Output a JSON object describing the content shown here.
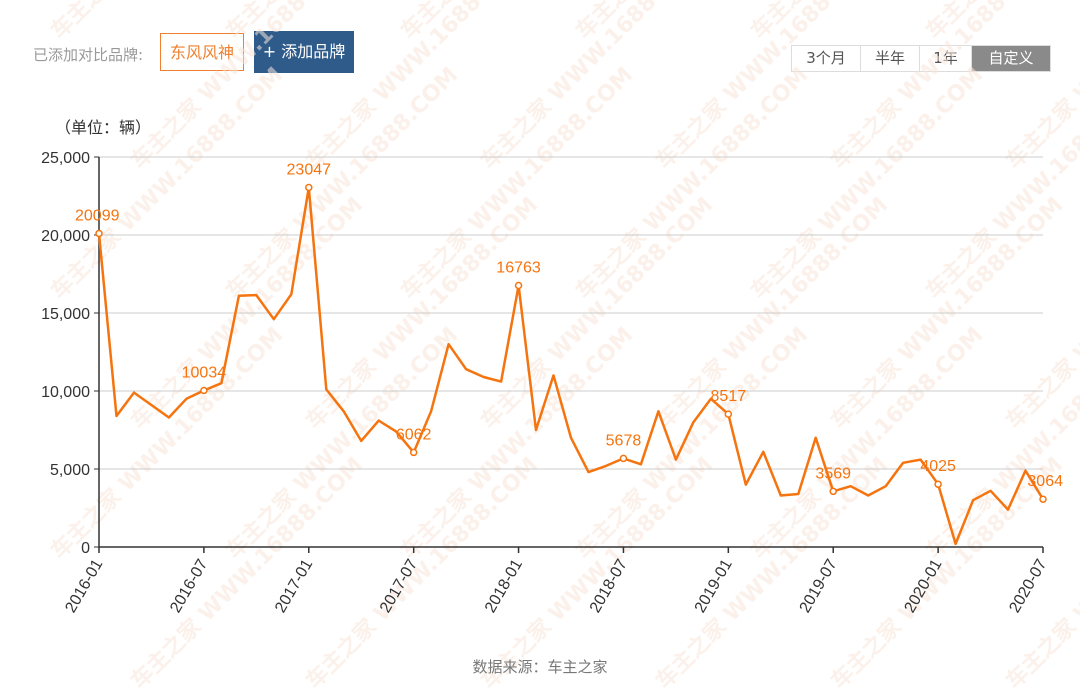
{
  "toolbar": {
    "added_label": "已添加对比品牌:",
    "brand_tag": "东风风神",
    "add_button": "+ 添加品牌",
    "ranges": [
      "3个月",
      "半年",
      "1年",
      "自定义"
    ],
    "active_range": "自定义"
  },
  "source_text": "数据来源：车主之家",
  "chart_data": {
    "type": "line",
    "unit_label": "（单位：辆）",
    "ylim": [
      0,
      25000
    ],
    "y_ticks": [
      0,
      5000,
      10000,
      15000,
      20000,
      25000
    ],
    "y_tick_labels": [
      "0",
      "5,000",
      "10,000",
      "15,000",
      "20,000",
      "25,000"
    ],
    "x_tick_labels": [
      "2016-01",
      "2016-07",
      "2017-01",
      "2017-07",
      "2018-01",
      "2018-07",
      "2019-01",
      "2019-07",
      "2020-01",
      "2020-07"
    ],
    "x": [
      "2016-01",
      "2016-02",
      "2016-03",
      "2016-04",
      "2016-05",
      "2016-06",
      "2016-07",
      "2016-08",
      "2016-09",
      "2016-10",
      "2016-11",
      "2016-12",
      "2017-01",
      "2017-02",
      "2017-03",
      "2017-04",
      "2017-05",
      "2017-06",
      "2017-07",
      "2017-08",
      "2017-09",
      "2017-10",
      "2017-11",
      "2017-12",
      "2018-01",
      "2018-02",
      "2018-03",
      "2018-04",
      "2018-05",
      "2018-06",
      "2018-07",
      "2018-08",
      "2018-09",
      "2018-10",
      "2018-11",
      "2018-12",
      "2019-01",
      "2019-02",
      "2019-03",
      "2019-04",
      "2019-05",
      "2019-06",
      "2019-07",
      "2019-08",
      "2019-09",
      "2019-10",
      "2019-11",
      "2019-12",
      "2020-01",
      "2020-02",
      "2020-03",
      "2020-04",
      "2020-05",
      "2020-06",
      "2020-07"
    ],
    "series": [
      {
        "color": "#f5740f",
        "values": [
          20099,
          8400,
          9900,
          9100,
          8300,
          9500,
          10034,
          10500,
          16100,
          16150,
          14600,
          16200,
          23047,
          10100,
          8700,
          6800,
          8100,
          7400,
          6062,
          8700,
          13000,
          11400,
          10900,
          10600,
          16763,
          7500,
          11000,
          7000,
          4800,
          5200,
          5678,
          5300,
          8700,
          5600,
          8000,
          9500,
          8517,
          4000,
          6100,
          3300,
          3400,
          7000,
          3569,
          3900,
          3300,
          3900,
          5400,
          5600,
          4025,
          200,
          3000,
          3600,
          2400,
          4900,
          3064
        ]
      }
    ],
    "labeled_points": [
      {
        "x": "2016-01",
        "label": "20099"
      },
      {
        "x": "2016-07",
        "label": "10034"
      },
      {
        "x": "2017-01",
        "label": "23047"
      },
      {
        "x": "2017-07",
        "label": "6062"
      },
      {
        "x": "2018-01",
        "label": "16763"
      },
      {
        "x": "2018-07",
        "label": "5678"
      },
      {
        "x": "2019-01",
        "label": "8517"
      },
      {
        "x": "2019-07",
        "label": "3569"
      },
      {
        "x": "2020-01",
        "label": "4025"
      },
      {
        "x": "2020-07",
        "label": "3064"
      }
    ],
    "grid": true,
    "watermark": "车主之家 WWW.16888.COM"
  }
}
